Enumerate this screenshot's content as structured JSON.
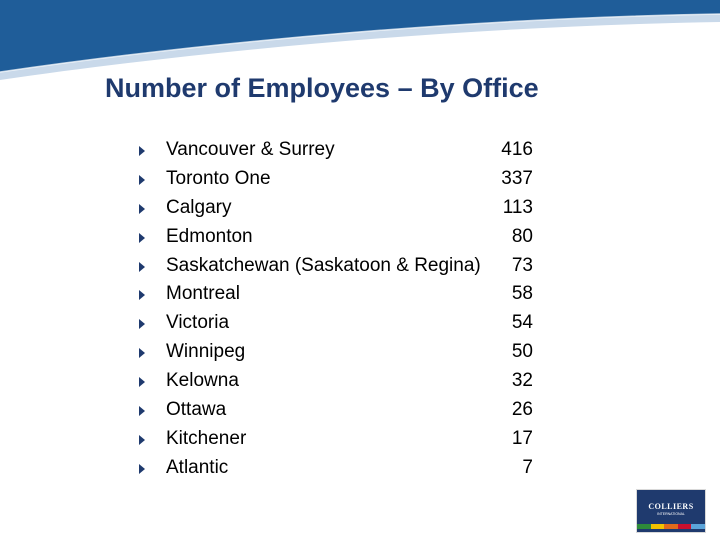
{
  "slide": {
    "title": "Number of Employees – By Office",
    "offices": [
      {
        "name": "Vancouver & Surrey",
        "count": "416"
      },
      {
        "name": "Toronto One",
        "count": "337"
      },
      {
        "name": "Calgary",
        "count": "113"
      },
      {
        "name": "Edmonton",
        "count": "80"
      },
      {
        "name": "Saskatchewan (Saskatoon & Regina)",
        "count": "73"
      },
      {
        "name": "Montreal",
        "count": "58"
      },
      {
        "name": "Victoria",
        "count": "54"
      },
      {
        "name": "Winnipeg",
        "count": "50"
      },
      {
        "name": "Kelowna",
        "count": "32"
      },
      {
        "name": "Ottawa",
        "count": "26"
      },
      {
        "name": "Kitchener",
        "count": "17"
      },
      {
        "name": "Atlantic",
        "count": "7"
      }
    ]
  },
  "logo": {
    "word": "COLLIERS",
    "subtitle": "INTERNATIONAL"
  },
  "colors": {
    "header_blue": "#1f5d99",
    "header_light": "#c9d9ea",
    "title": "#1f3a6e",
    "bullet": "#1f3a6e",
    "logo_stripes": [
      "#2e8b3a",
      "#f2c200",
      "#e06a1b",
      "#c8102e",
      "#5ba4d9"
    ]
  },
  "icons": {
    "bullet": "triangle-right-icon"
  }
}
